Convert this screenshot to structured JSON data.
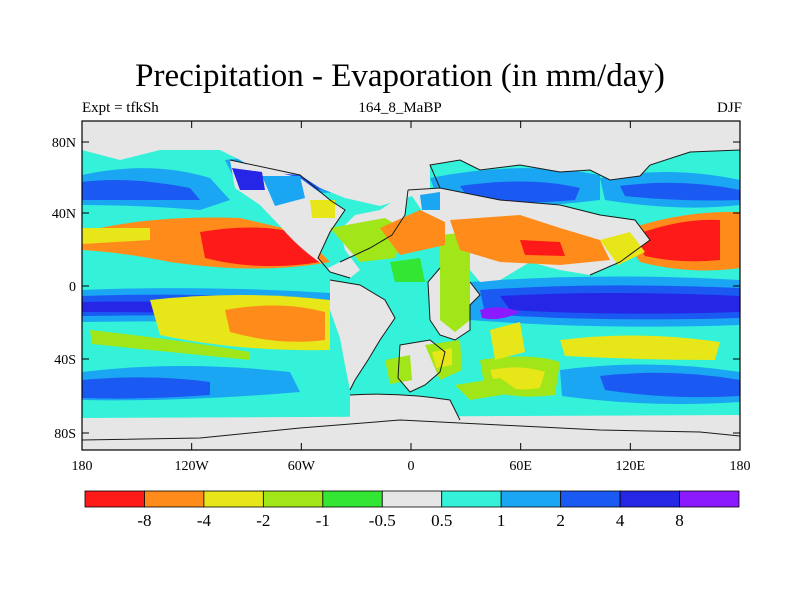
{
  "title": "Precipitation - Evaporation (in mm/day)",
  "subtitle_left": "Expt = tfkSh",
  "subtitle_center": "164_8_MaBP",
  "subtitle_right": "DJF",
  "x_ticks": [
    "180",
    "120W",
    "60W",
    "0",
    "60E",
    "120E",
    "180"
  ],
  "y_ticks": [
    "80N",
    "40N",
    "0",
    "40S",
    "80S"
  ],
  "colorbar": {
    "colors": [
      "#ff1a1a",
      "#ff8c1a",
      "#e6e619",
      "#a0e619",
      "#33e633",
      "#e6e6e6",
      "#33f2d9",
      "#1aa6f2",
      "#1a59f2",
      "#2626e6",
      "#8c1aff"
    ],
    "labels": [
      "-8",
      "-4",
      "-2",
      "-1",
      "-0.5",
      "0.5",
      "1",
      "2",
      "4",
      "8"
    ]
  },
  "colors": {
    "ocean_bg": "#33f2d9",
    "land": "#e6e6e6",
    "coast": "#1a1a1a",
    "frame": "#000000"
  }
}
